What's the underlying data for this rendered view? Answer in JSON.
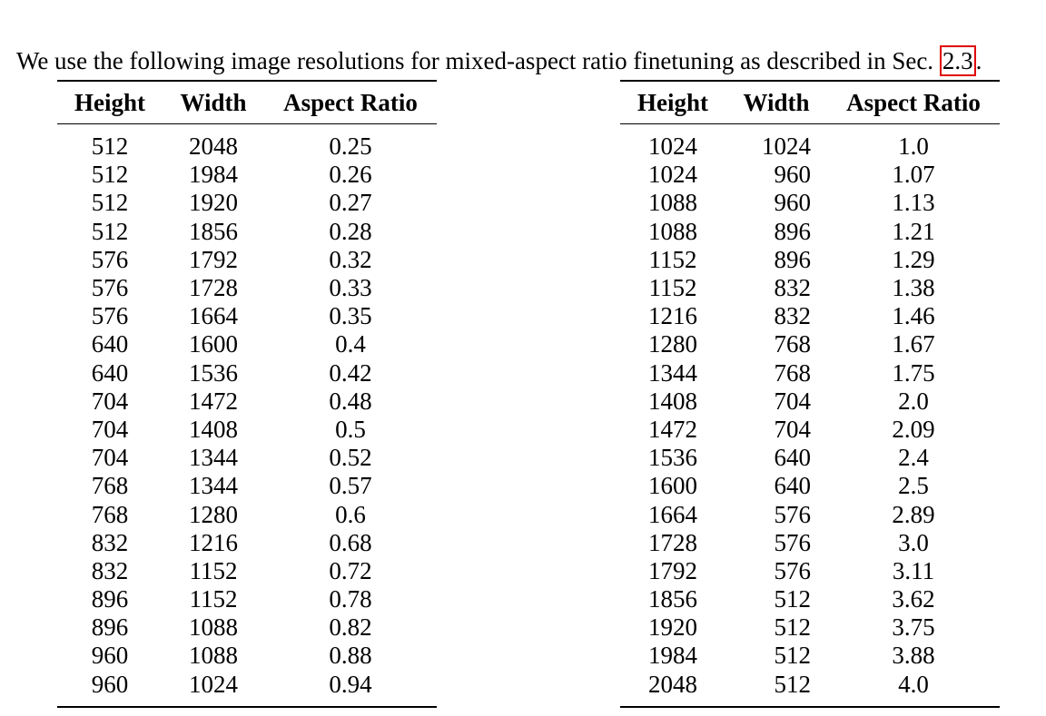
{
  "intro": {
    "text_before": "We use the following image resolutions for mixed-aspect ratio finetuning as described in Sec. ",
    "section_ref": "2.3",
    "text_after": "."
  },
  "columns": [
    "Height",
    "Width",
    "Aspect Ratio"
  ],
  "left_table": {
    "rows": [
      [
        "512",
        "2048",
        "0.25"
      ],
      [
        "512",
        "1984",
        "0.26"
      ],
      [
        "512",
        "1920",
        "0.27"
      ],
      [
        "512",
        "1856",
        "0.28"
      ],
      [
        "576",
        "1792",
        "0.32"
      ],
      [
        "576",
        "1728",
        "0.33"
      ],
      [
        "576",
        "1664",
        "0.35"
      ],
      [
        "640",
        "1600",
        "0.4"
      ],
      [
        "640",
        "1536",
        "0.42"
      ],
      [
        "704",
        "1472",
        "0.48"
      ],
      [
        "704",
        "1408",
        "0.5"
      ],
      [
        "704",
        "1344",
        "0.52"
      ],
      [
        "768",
        "1344",
        "0.57"
      ],
      [
        "768",
        "1280",
        "0.6"
      ],
      [
        "832",
        "1216",
        "0.68"
      ],
      [
        "832",
        "1152",
        "0.72"
      ],
      [
        "896",
        "1152",
        "0.78"
      ],
      [
        "896",
        "1088",
        "0.82"
      ],
      [
        "960",
        "1088",
        "0.88"
      ],
      [
        "960",
        "1024",
        "0.94"
      ]
    ]
  },
  "right_table": {
    "rows": [
      [
        "1024",
        "1024",
        "1.0"
      ],
      [
        "1024",
        "960",
        "1.07"
      ],
      [
        "1088",
        "960",
        "1.13"
      ],
      [
        "1088",
        "896",
        "1.21"
      ],
      [
        "1152",
        "896",
        "1.29"
      ],
      [
        "1152",
        "832",
        "1.38"
      ],
      [
        "1216",
        "832",
        "1.46"
      ],
      [
        "1280",
        "768",
        "1.67"
      ],
      [
        "1344",
        "768",
        "1.75"
      ],
      [
        "1408",
        "704",
        "2.0"
      ],
      [
        "1472",
        "704",
        "2.09"
      ],
      [
        "1536",
        "640",
        "2.4"
      ],
      [
        "1600",
        "640",
        "2.5"
      ],
      [
        "1664",
        "576",
        "2.89"
      ],
      [
        "1728",
        "576",
        "3.0"
      ],
      [
        "1792",
        "576",
        "3.11"
      ],
      [
        "1856",
        "512",
        "3.62"
      ],
      [
        "1920",
        "512",
        "3.75"
      ],
      [
        "1984",
        "512",
        "3.88"
      ],
      [
        "2048",
        "512",
        "4.0"
      ]
    ]
  }
}
